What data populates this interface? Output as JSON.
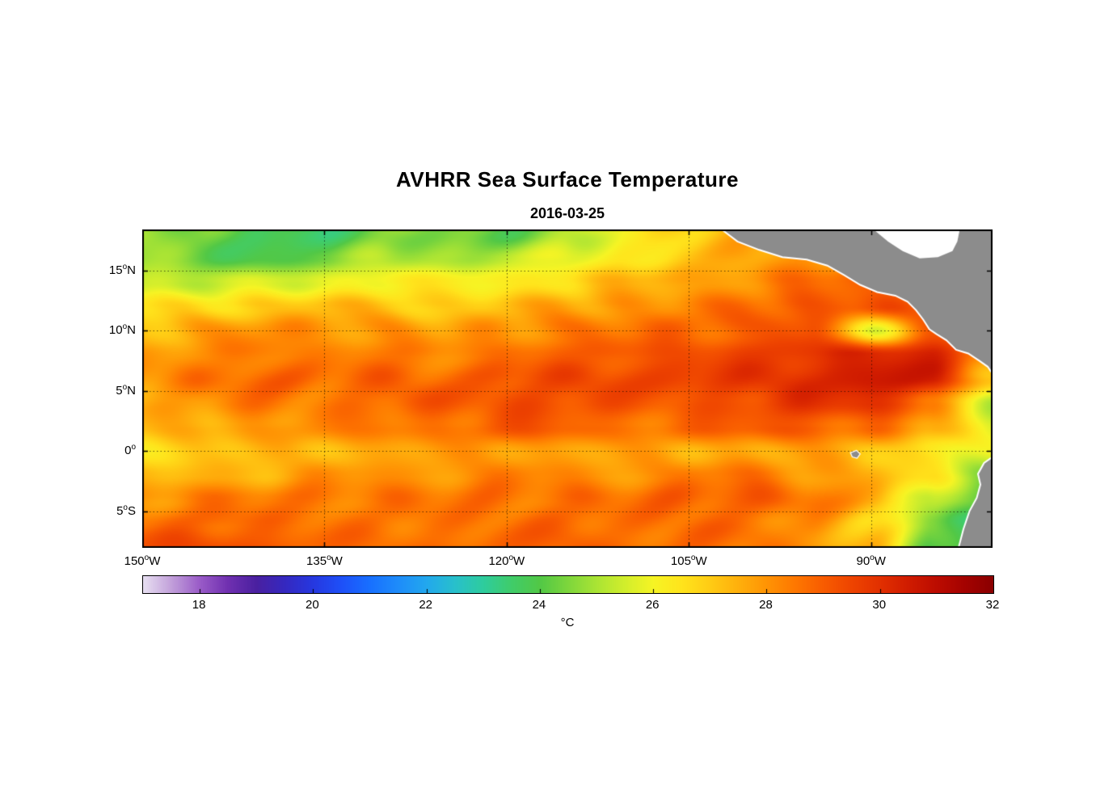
{
  "chart_data": {
    "type": "heatmap",
    "title": "AVHRR Sea Surface Temperature",
    "subtitle": "2016-03-25",
    "legend_position": "bottom-colorbar",
    "grid_lines": "dotted",
    "axes": {
      "lon_min": -150,
      "lon_max": -80,
      "lat_min": -8.05,
      "lat_max": 18.4,
      "x_ticks": [
        {
          "value": -150,
          "num": "150",
          "deg": "o",
          "dir": "W"
        },
        {
          "value": -135,
          "num": "135",
          "deg": "o",
          "dir": "W"
        },
        {
          "value": -120,
          "num": "120",
          "deg": "o",
          "dir": "W"
        },
        {
          "value": -105,
          "num": "105",
          "deg": "o",
          "dir": "W"
        },
        {
          "value": -90,
          "num": "90",
          "deg": "o",
          "dir": "W"
        }
      ],
      "y_ticks": [
        {
          "value": 15,
          "num": "15",
          "deg": "o",
          "dir": "N"
        },
        {
          "value": 10,
          "num": "10",
          "deg": "o",
          "dir": "N"
        },
        {
          "value": 5,
          "num": "5",
          "deg": "o",
          "dir": "N"
        },
        {
          "value": 0,
          "num": "0",
          "deg": "o",
          "dir": ""
        },
        {
          "value": -5,
          "num": "5",
          "deg": "o",
          "dir": "S"
        }
      ]
    },
    "colorbar": {
      "min": 17,
      "max": 32,
      "tick_values": [
        18,
        20,
        22,
        24,
        26,
        28,
        30,
        32
      ],
      "tick_labels": [
        "18",
        "20",
        "22",
        "24",
        "26",
        "28",
        "30",
        "32"
      ],
      "unit_label": "°C",
      "stops": [
        [
          17.0,
          "#e8e0f2"
        ],
        [
          17.5,
          "#c2a0da"
        ],
        [
          18.0,
          "#9a5cc8"
        ],
        [
          18.5,
          "#7030b0"
        ],
        [
          19.0,
          "#4a20a0"
        ],
        [
          19.5,
          "#3528c0"
        ],
        [
          20.0,
          "#2638e0"
        ],
        [
          20.5,
          "#1e50f8"
        ],
        [
          21.0,
          "#1870ff"
        ],
        [
          21.5,
          "#1e8cfa"
        ],
        [
          22.0,
          "#22a8ee"
        ],
        [
          22.5,
          "#28c0cc"
        ],
        [
          23.0,
          "#2ecc9e"
        ],
        [
          23.5,
          "#40cc6a"
        ],
        [
          24.0,
          "#52c846"
        ],
        [
          24.5,
          "#7ed63c"
        ],
        [
          25.0,
          "#aae434"
        ],
        [
          25.5,
          "#d2ee2c"
        ],
        [
          26.0,
          "#f6f424"
        ],
        [
          26.5,
          "#ffe41c"
        ],
        [
          27.0,
          "#ffcc14"
        ],
        [
          27.5,
          "#ffb00c"
        ],
        [
          28.0,
          "#ff9404"
        ],
        [
          28.5,
          "#fe7800"
        ],
        [
          29.0,
          "#f85c00"
        ],
        [
          29.5,
          "#ee4400"
        ],
        [
          30.0,
          "#e23000"
        ],
        [
          30.5,
          "#d01c00"
        ],
        [
          31.0,
          "#bc0c00"
        ],
        [
          31.5,
          "#a40200"
        ],
        [
          32.0,
          "#8a0000"
        ]
      ]
    },
    "grid": {
      "lons": [
        -150,
        -145,
        -140,
        -135,
        -130,
        -125,
        -120,
        -115,
        -110,
        -105,
        -100,
        -95,
        -90,
        -85,
        -80
      ],
      "lats": [
        18,
        16,
        14,
        12,
        10,
        8,
        6,
        4,
        2,
        0,
        -2,
        -4,
        -6,
        -8
      ],
      "sst_c": [
        [
          25.2,
          24.4,
          23.7,
          23.6,
          24.6,
          24.4,
          24.1,
          25.2,
          26.0,
          27.0,
          27.8,
          28.2,
          28.2,
          27.8,
          27.4
        ],
        [
          24.8,
          24.2,
          23.9,
          24.2,
          25.2,
          25.0,
          25.1,
          25.8,
          26.4,
          27.0,
          27.6,
          28.0,
          28.1,
          27.9,
          27.5
        ],
        [
          25.5,
          25.3,
          25.4,
          25.9,
          26.3,
          26.1,
          26.3,
          26.8,
          27.3,
          27.7,
          28.2,
          28.6,
          28.8,
          28.2,
          27.8
        ],
        [
          26.5,
          26.7,
          27.1,
          27.3,
          27.2,
          27.0,
          27.3,
          27.7,
          28.1,
          28.3,
          28.7,
          29.2,
          29.4,
          28.6,
          28.0
        ],
        [
          27.2,
          27.7,
          28.1,
          28.0,
          27.9,
          27.7,
          28.0,
          28.4,
          28.5,
          28.8,
          28.9,
          29.3,
          25.6,
          29.0,
          28.2
        ],
        [
          27.8,
          28.2,
          28.6,
          28.3,
          28.6,
          28.3,
          28.7,
          29.0,
          29.2,
          29.4,
          29.6,
          30.0,
          30.4,
          30.2,
          28.4
        ],
        [
          28.0,
          28.5,
          28.9,
          28.6,
          28.9,
          28.7,
          29.1,
          29.4,
          29.4,
          29.5,
          29.8,
          30.0,
          30.6,
          30.4,
          27.0
        ],
        [
          27.6,
          28.1,
          28.5,
          28.5,
          28.9,
          29.0,
          29.4,
          29.4,
          29.1,
          29.2,
          29.5,
          29.9,
          30.0,
          28.8,
          24.8
        ],
        [
          27.1,
          27.6,
          28.0,
          28.1,
          28.5,
          28.6,
          29.0,
          28.9,
          28.6,
          28.7,
          29.0,
          29.1,
          28.6,
          27.6,
          25.8
        ],
        [
          26.7,
          27.0,
          27.2,
          27.5,
          27.6,
          27.7,
          28.0,
          27.7,
          27.6,
          27.6,
          27.7,
          27.6,
          27.2,
          26.6,
          25.6
        ],
        [
          27.1,
          27.5,
          27.6,
          28.0,
          28.0,
          28.1,
          28.4,
          28.1,
          28.1,
          28.4,
          28.5,
          28.1,
          27.6,
          26.2,
          24.8
        ],
        [
          28.0,
          28.4,
          28.4,
          28.5,
          28.5,
          28.5,
          28.6,
          28.6,
          28.6,
          28.9,
          29.0,
          28.5,
          27.6,
          25.2,
          24.2
        ],
        [
          28.6,
          28.9,
          28.9,
          28.6,
          28.6,
          28.6,
          28.7,
          28.9,
          28.6,
          28.9,
          28.6,
          28.1,
          27.0,
          24.6,
          23.2
        ],
        [
          29.1,
          29.4,
          29.0,
          28.7,
          28.6,
          28.6,
          28.7,
          28.9,
          28.6,
          28.6,
          28.5,
          28.0,
          27.2,
          24.2,
          22.8
        ]
      ]
    },
    "land": {
      "color": "#8c8c8c",
      "coast_color": "#ffffff",
      "polygons": [
        {
          "name": "central-america",
          "type": "land",
          "points": [
            [
              -102.3,
              18.4
            ],
            [
              -101.0,
              17.4
            ],
            [
              -99.2,
              16.7
            ],
            [
              -97.3,
              16.1
            ],
            [
              -95.3,
              15.9
            ],
            [
              -93.6,
              15.4
            ],
            [
              -92.2,
              14.6
            ],
            [
              -90.9,
              13.8
            ],
            [
              -89.5,
              13.2
            ],
            [
              -88.0,
              12.9
            ],
            [
              -87.0,
              12.4
            ],
            [
              -86.3,
              11.7
            ],
            [
              -85.7,
              10.9
            ],
            [
              -85.2,
              10.1
            ],
            [
              -84.6,
              9.7
            ],
            [
              -83.8,
              9.2
            ],
            [
              -83.0,
              8.4
            ],
            [
              -82.0,
              8.1
            ],
            [
              -81.1,
              7.5
            ],
            [
              -80.4,
              7.0
            ],
            [
              -80.0,
              6.4
            ],
            [
              -80.0,
              18.4
            ]
          ]
        },
        {
          "name": "caribbean-nodata",
          "type": "nodata",
          "points": [
            [
              -89.8,
              18.4
            ],
            [
              -88.6,
              17.4
            ],
            [
              -87.4,
              16.6
            ],
            [
              -86.0,
              16.0
            ],
            [
              -84.5,
              16.1
            ],
            [
              -83.3,
              16.6
            ],
            [
              -82.9,
              17.4
            ],
            [
              -82.7,
              18.4
            ]
          ]
        },
        {
          "name": "south-america",
          "type": "land",
          "points": [
            [
              -80.0,
              -0.5
            ],
            [
              -80.7,
              -1.0
            ],
            [
              -81.2,
              -1.9
            ],
            [
              -81.0,
              -2.8
            ],
            [
              -81.3,
              -3.9
            ],
            [
              -81.9,
              -5.0
            ],
            [
              -82.4,
              -6.5
            ],
            [
              -82.8,
              -8.05
            ],
            [
              -80.0,
              -8.05
            ]
          ]
        },
        {
          "name": "galapagos-island",
          "type": "land",
          "points": [
            [
              -91.7,
              -0.15
            ],
            [
              -91.2,
              0.05
            ],
            [
              -90.9,
              -0.25
            ],
            [
              -91.15,
              -0.6
            ],
            [
              -91.55,
              -0.5
            ]
          ]
        }
      ]
    }
  }
}
